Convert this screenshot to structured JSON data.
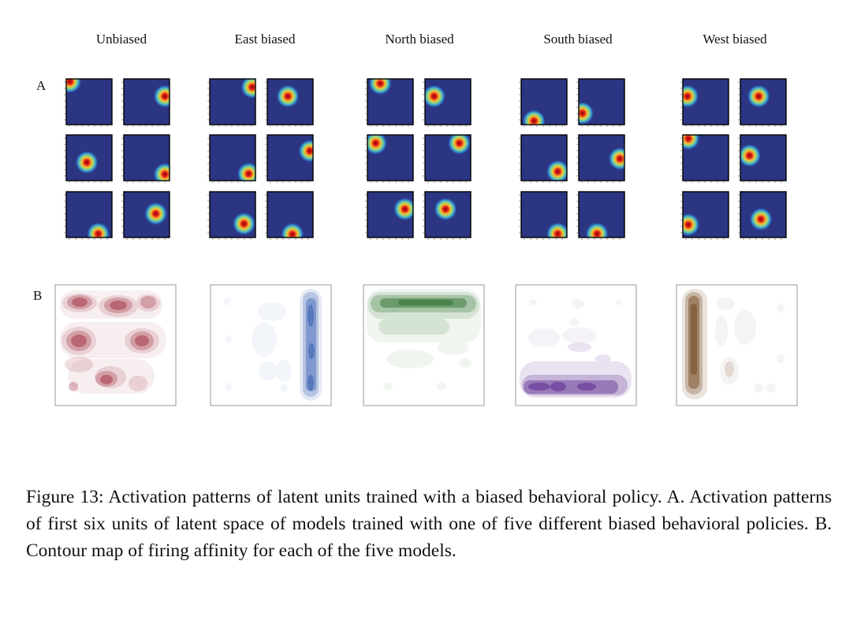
{
  "columns": [
    "Unbiased",
    "East biased",
    "North biased",
    "South biased",
    "West biased"
  ],
  "panels": {
    "a": "A",
    "b": "B"
  },
  "caption": "Figure 13: Activation patterns of latent units trained with a biased behavioral policy. A. Activation patterns of first six units of latent space of models trained with one of five different biased behavioral policies. B. Contour map of firing affinity for each of the five models.",
  "colors": {
    "heatmap_bg": "#2b3582",
    "unbiased": "#a63a4a",
    "east": "#3e63b4",
    "north": "#3c7a3c",
    "south": "#6a3d9a",
    "west": "#7d5530"
  },
  "panel_a": {
    "description_units": "activation peak location per unit (fraction of arena: fx from west, fy from north)",
    "groups": [
      [
        [
          0.08,
          0.06
        ],
        [
          0.9,
          0.38
        ],
        [
          0.45,
          0.6
        ],
        [
          0.9,
          0.86
        ],
        [
          0.7,
          0.92
        ],
        [
          0.7,
          0.48
        ]
      ],
      [
        [
          0.93,
          0.18
        ],
        [
          0.45,
          0.38
        ],
        [
          0.85,
          0.85
        ],
        [
          0.93,
          0.35
        ],
        [
          0.75,
          0.7
        ],
        [
          0.55,
          0.93
        ]
      ],
      [
        [
          0.28,
          0.1
        ],
        [
          0.2,
          0.38
        ],
        [
          0.18,
          0.18
        ],
        [
          0.75,
          0.18
        ],
        [
          0.82,
          0.38
        ],
        [
          0.45,
          0.38
        ]
      ],
      [
        [
          0.28,
          0.92
        ],
        [
          0.08,
          0.75
        ],
        [
          0.8,
          0.8
        ],
        [
          0.9,
          0.52
        ],
        [
          0.8,
          0.92
        ],
        [
          0.4,
          0.92
        ]
      ],
      [
        [
          0.1,
          0.38
        ],
        [
          0.4,
          0.38
        ],
        [
          0.12,
          0.08
        ],
        [
          0.2,
          0.45
        ],
        [
          0.12,
          0.72
        ],
        [
          0.45,
          0.6
        ]
      ]
    ]
  }
}
